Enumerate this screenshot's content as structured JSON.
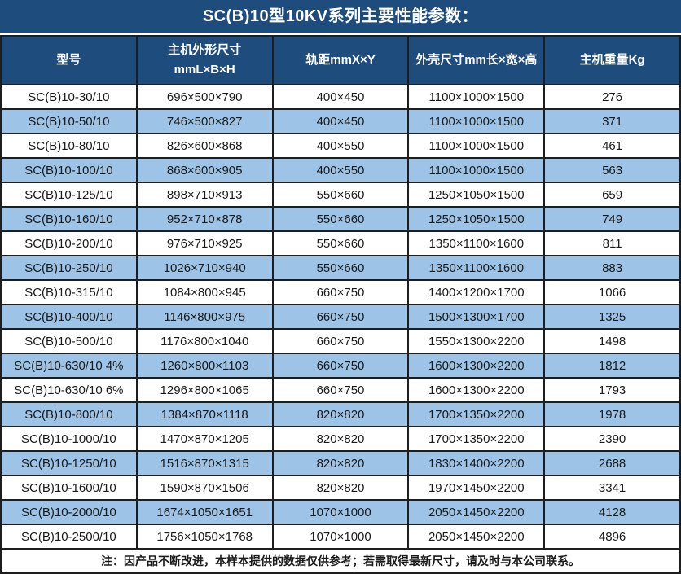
{
  "chart_data": {
    "type": "table",
    "title": "SC(B)10型10KV系列主要性能参数：",
    "columns": [
      "型号",
      "主机外形尺寸\nmmL×B×H",
      "轨距mmX×Y",
      "外壳尺寸mm长×宽×高",
      "主机重量Kg"
    ],
    "rows": [
      [
        "SC(B)10-30/10",
        "696×500×790",
        "400×450",
        "1100×1000×1500",
        "276"
      ],
      [
        "SC(B)10-50/10",
        "746×500×827",
        "400×450",
        "1100×1000×1500",
        "371"
      ],
      [
        "SC(B)10-80/10",
        "826×600×868",
        "400×550",
        "1100×1000×1500",
        "461"
      ],
      [
        "SC(B)10-100/10",
        "868×600×905",
        "400×550",
        "1100×1000×1500",
        "563"
      ],
      [
        "SC(B)10-125/10",
        "898×710×913",
        "550×660",
        "1250×1050×1500",
        "659"
      ],
      [
        "SC(B)10-160/10",
        "952×710×878",
        "550×660",
        "1250×1050×1500",
        "749"
      ],
      [
        "SC(B)10-200/10",
        "976×710×925",
        "550×660",
        "1350×1100×1600",
        "811"
      ],
      [
        "SC(B)10-250/10",
        "1026×710×940",
        "550×660",
        "1350×1100×1600",
        "883"
      ],
      [
        "SC(B)10-315/10",
        "1084×800×945",
        "660×750",
        "1400×1200×1700",
        "1066"
      ],
      [
        "SC(B)10-400/10",
        "1146×800×975",
        "660×750",
        "1500×1300×1700",
        "1325"
      ],
      [
        "SC(B)10-500/10",
        "1176×800×1040",
        "660×750",
        "1550×1300×2200",
        "1498"
      ],
      [
        "SC(B)10-630/10 4%",
        "1260×800×1103",
        "660×750",
        "1600×1300×2200",
        "1812"
      ],
      [
        "SC(B)10-630/10 6%",
        "1296×800×1065",
        "660×750",
        "1600×1300×2200",
        "1793"
      ],
      [
        "SC(B)10-800/10",
        "1384×870×1118",
        "820×820",
        "1700×1350×2200",
        "1978"
      ],
      [
        "SC(B)10-1000/10",
        "1470×870×1205",
        "820×820",
        "1700×1350×2200",
        "2390"
      ],
      [
        "SC(B)10-1250/10",
        "1516×870×1315",
        "820×820",
        "1830×1400×2200",
        "2688"
      ],
      [
        "SC(B)10-1600/10",
        "1590×870×1506",
        "820×820",
        "1970×1450×2200",
        "3341"
      ],
      [
        "SC(B)10-2000/10",
        "1674×1050×1651",
        "1070×1000",
        "2050×1450×2200",
        "4128"
      ],
      [
        "SC(B)10-2500/10",
        "1756×1050×1768",
        "1070×1000",
        "2050×1450×2200",
        "4896"
      ]
    ],
    "note": "注：因产品不断改进，本样本提供的数据仅供参考；若需取得最新尺寸，请及时与本公司联系。",
    "layout": {
      "alternating_rows": "odd rows white, even rows light blue",
      "grid": true
    }
  },
  "colors": {
    "header_bg": "#1E4C7C",
    "alt_row_bg": "#9DC3E6",
    "border": "#1E1E1E",
    "header_text": "#FFFFFF",
    "body_text": "#1A1A1A"
  }
}
